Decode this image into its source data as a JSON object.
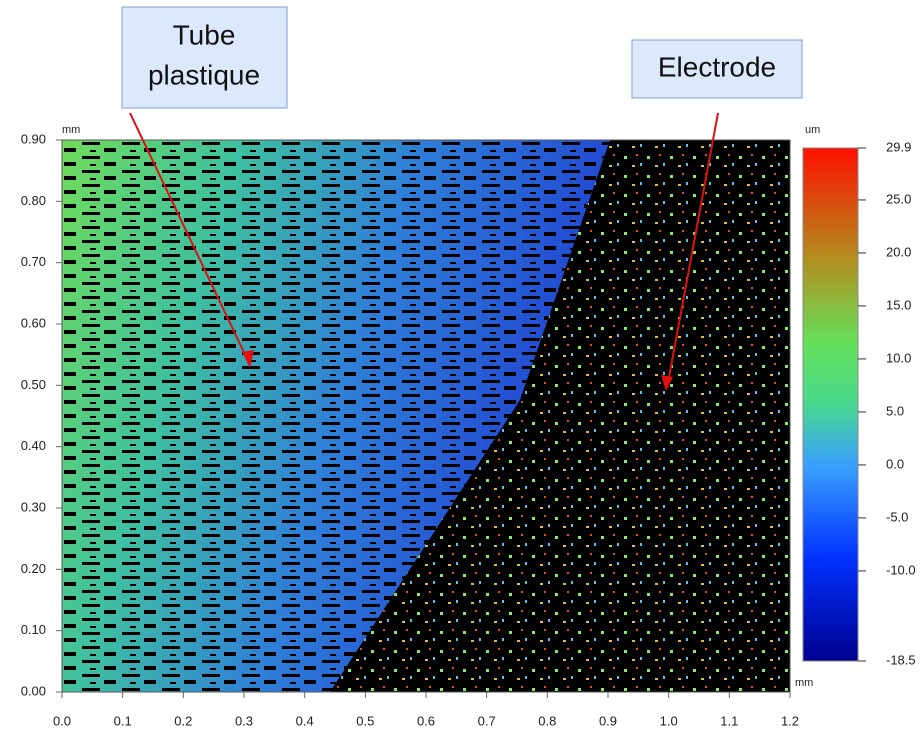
{
  "chart_data": {
    "type": "heatmap",
    "x_label": "mm",
    "y_label": "mm",
    "xlim": [
      0,
      1.2
    ],
    "ylim": [
      0,
      0.9
    ],
    "xticks": [
      {
        "value": 0,
        "label": "0.0"
      },
      0.1,
      0.2,
      0.3,
      0.4,
      0.5,
      0.6,
      0.7,
      0.8,
      0.9,
      {
        "value": 1,
        "label": "1.0"
      },
      1.1,
      1.2
    ],
    "yticks": [
      {
        "value": 0,
        "label": "0.00"
      },
      {
        "value": 0.1,
        "label": "0.10"
      },
      {
        "value": 0.2,
        "label": "0.20"
      },
      {
        "value": 0.3,
        "label": "0.30"
      },
      {
        "value": 0.4,
        "label": "0.40"
      },
      {
        "value": 0.5,
        "label": "0.50"
      },
      {
        "value": 0.6,
        "label": "0.60"
      },
      {
        "value": 0.7,
        "label": "0.70"
      },
      {
        "value": 0.8,
        "label": "0.80"
      },
      {
        "value": 0.9,
        "label": "0.90"
      }
    ],
    "colorbar_label": "um",
    "clim": [
      -18.5,
      29.9
    ],
    "cticks": [
      -18.5,
      {
        "value": -10,
        "label": "-10.0"
      },
      {
        "value": -5,
        "label": "-5.0"
      },
      {
        "value": 0,
        "label": "0.0"
      },
      {
        "value": 5,
        "label": "5.0"
      },
      {
        "value": 10,
        "label": "10.0"
      },
      {
        "value": 15,
        "label": "15.0"
      },
      {
        "value": 20,
        "label": "20.0"
      },
      {
        "value": 25,
        "label": "25.0"
      },
      29.9
    ],
    "annotations": [
      {
        "lines": [
          "Tube",
          "plastique"
        ]
      },
      {
        "lines": [
          "Electrode"
        ]
      }
    ]
  }
}
